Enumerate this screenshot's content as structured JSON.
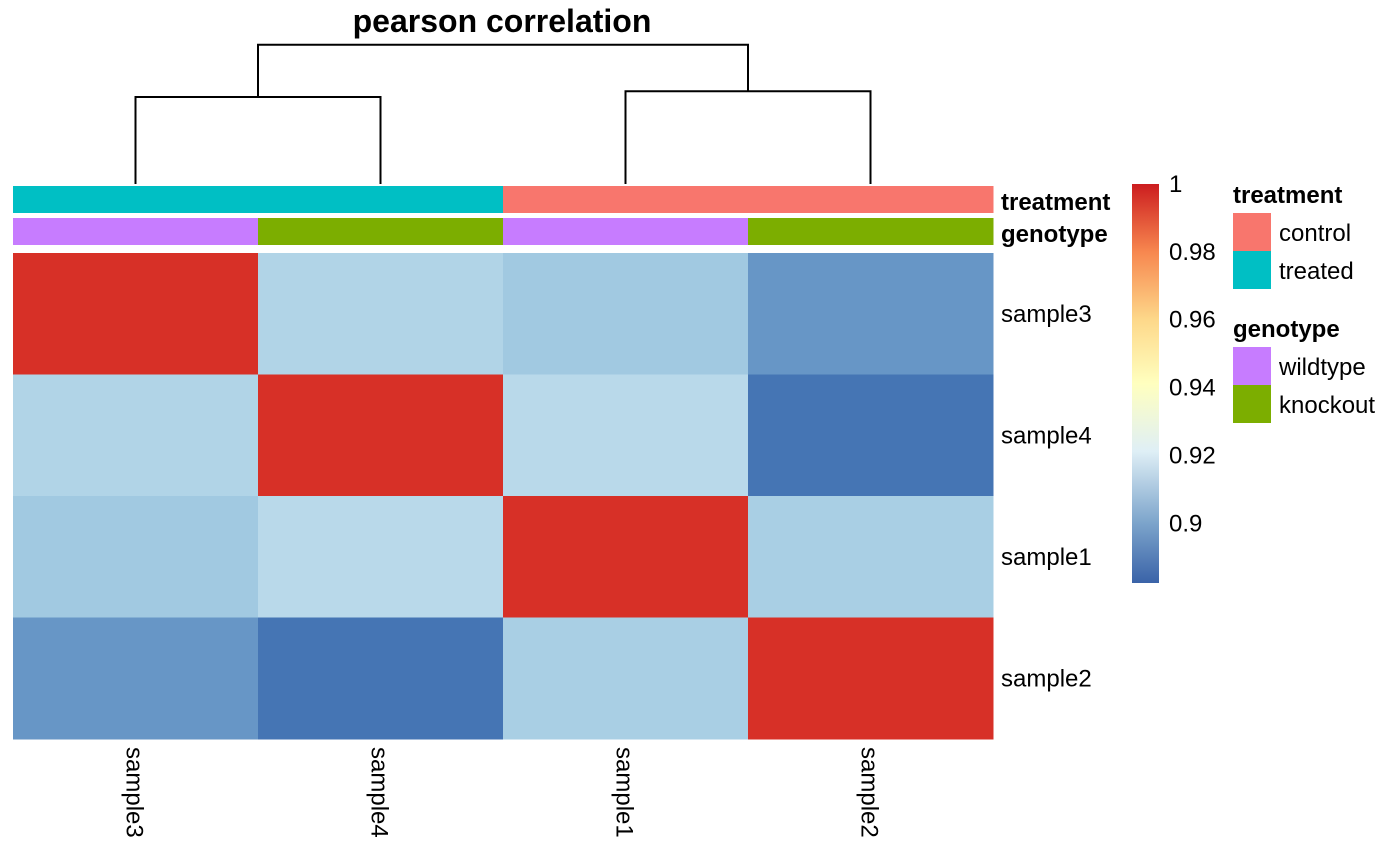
{
  "chart_data": {
    "type": "heatmap",
    "title": "pearson correlation",
    "rows": [
      "sample3",
      "sample4",
      "sample1",
      "sample2"
    ],
    "columns": [
      "sample3",
      "sample4",
      "sample1",
      "sample2"
    ],
    "values": [
      [
        1.0,
        0.908,
        0.904,
        0.889
      ],
      [
        0.908,
        1.0,
        0.91,
        0.88
      ],
      [
        0.904,
        0.91,
        1.0,
        0.906
      ],
      [
        0.889,
        0.88,
        0.906,
        1.0
      ]
    ],
    "dendrogram": {
      "merges": [
        {
          "left": "sample3",
          "right": "sample4",
          "height": 0.3
        },
        {
          "left": "sample1",
          "right": "sample2",
          "height": 0.32
        },
        {
          "left": "cluster-1",
          "right": "cluster-2",
          "height": 0.48
        }
      ]
    },
    "annotations": [
      {
        "name": "treatment",
        "values": [
          "treated",
          "treated",
          "control",
          "control"
        ]
      },
      {
        "name": "genotype",
        "values": [
          "wildtype",
          "knockout",
          "wildtype",
          "knockout"
        ]
      }
    ],
    "colorbar": {
      "min": 0.88,
      "max": 1.0,
      "ticks": [
        "1",
        "0.98",
        "0.96",
        "0.94",
        "0.92",
        "0.9"
      ],
      "tick_values": [
        1.0,
        0.98,
        0.96,
        0.94,
        0.92,
        0.9
      ],
      "colors": [
        "#4575b4",
        "#91bfdb",
        "#e0f3f8",
        "#ffffbf",
        "#fee090",
        "#fc8d59",
        "#d73027"
      ]
    },
    "legends": [
      {
        "title": "treatment",
        "items": [
          {
            "label": "control",
            "color": "#f8766d"
          },
          {
            "label": "treated",
            "color": "#00bfc4"
          }
        ]
      },
      {
        "title": "genotype",
        "items": [
          {
            "label": "wildtype",
            "color": "#c77cff"
          },
          {
            "label": "knockout",
            "color": "#7cae00"
          }
        ]
      }
    ],
    "annotation_colors": {
      "treatment": {
        "control": "#f8766d",
        "treated": "#00bfc4"
      },
      "genotype": {
        "wildtype": "#c77cff",
        "knockout": "#7cae00"
      }
    }
  }
}
